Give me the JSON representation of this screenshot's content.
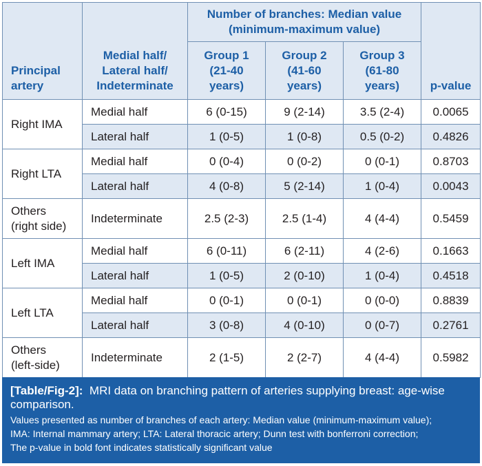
{
  "header": {
    "principal_artery": "Principal artery",
    "half_col": [
      "Medial half/",
      "Lateral half/",
      "Indeterminate"
    ],
    "span_title": [
      "Number of branches: Median value",
      "(minimum-maximum value)"
    ],
    "groups": [
      {
        "lines": [
          "Group 1",
          "(21-40",
          "years)"
        ]
      },
      {
        "lines": [
          "Group 2",
          "(41-60",
          "years)"
        ]
      },
      {
        "lines": [
          "Group 3",
          "(61-80",
          "years)"
        ]
      }
    ],
    "pvalue": "p-value"
  },
  "rows": [
    {
      "artery_lines": [
        "Right IMA"
      ],
      "half": "Medial half",
      "g1": "6 (0-15)",
      "g2": "9 (2-14)",
      "g3": "3.5 (2-4)",
      "p": "0.0065",
      "bold": true
    },
    {
      "half": "Lateral half",
      "g1": "1 (0-5)",
      "g2": "1 (0-8)",
      "g3": "0.5 (0-2)",
      "p": "0.4826",
      "bold": false
    },
    {
      "artery_lines": [
        "Right LTA"
      ],
      "half": "Medial half",
      "g1": "0 (0-4)",
      "g2": "0 (0-2)",
      "g3": "0 (0-1)",
      "p": "0.8703",
      "bold": false
    },
    {
      "half": "Lateral half",
      "g1": "4 (0-8)",
      "g2": "5 (2-14)",
      "g3": "1 (0-4)",
      "p": "0.0043",
      "bold": true
    },
    {
      "artery_lines": [
        "Others",
        "(right side)"
      ],
      "half": "Indeterminate",
      "g1": "2.5 (2-3)",
      "g2": "2.5 (1-4)",
      "g3": "4 (4-4)",
      "p": "0.5459",
      "bold": false
    },
    {
      "artery_lines": [
        "Left IMA"
      ],
      "half": "Medial half",
      "g1": "6 (0-11)",
      "g2": "6 (2-11)",
      "g3": "4 (2-6)",
      "p": "0.1663",
      "bold": false
    },
    {
      "half": "Lateral half",
      "g1": "1 (0-5)",
      "g2": "2 (0-10)",
      "g3": "1 (0-4)",
      "p": "0.4518",
      "bold": false
    },
    {
      "artery_lines": [
        "Left LTA"
      ],
      "half": "Medial half",
      "g1": "0 (0-1)",
      "g2": "0 (0-1)",
      "g3": "0 (0-0)",
      "p": "0.8839",
      "bold": false
    },
    {
      "half": "Lateral half",
      "g1": "3 (0-8)",
      "g2": "4 (0-10)",
      "g3": "0 (0-7)",
      "p": "0.2761",
      "bold": false
    },
    {
      "artery_lines": [
        "Others",
        "(left-side)"
      ],
      "half": "Indeterminate",
      "g1": "2 (1-5)",
      "g2": "2 (2-7)",
      "g3": "4 (4-4)",
      "p": "0.5982",
      "bold": false
    }
  ],
  "caption": {
    "label": "[Table/Fig-2]:",
    "title": "MRI data on branching pattern of arteries supplying breast: age-wise comparison.",
    "notes": [
      "Values presented as number of branches of each artery: Median value (minimum-maximum value);",
      "IMA: Internal mammary artery; LTA: Lateral thoracic artery; Dunn test with bonferroni correction;",
      "The p-value in bold font indicates statistically significant value"
    ]
  }
}
